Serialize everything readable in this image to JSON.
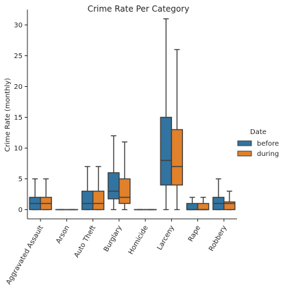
{
  "chart_data": {
    "type": "box",
    "title": "Crime Rate Per Category",
    "xlabel": "",
    "ylabel": "Crime Rate (monthly)",
    "ylim": [
      -1.5,
      32.5
    ],
    "yticks": [
      0,
      5,
      10,
      15,
      20,
      25,
      30
    ],
    "grid": false,
    "legend": {
      "title": "Date",
      "placement": "right"
    },
    "categories": [
      "Aggravated Assault",
      "Arson",
      "Auto Theft",
      "Burglary",
      "Homicide",
      "Larceny",
      "Rape",
      "Robbery"
    ],
    "series": [
      {
        "name": "before",
        "color": "#3274a1",
        "boxes": [
          {
            "min": 0,
            "q1": 0,
            "median": 1,
            "q3": 2,
            "max": 5
          },
          {
            "min": 0,
            "q1": 0,
            "median": 0,
            "q3": 0,
            "max": 0
          },
          {
            "min": 0,
            "q1": 0,
            "median": 1,
            "q3": 3,
            "max": 7
          },
          {
            "min": 0,
            "q1": 1.75,
            "median": 3,
            "q3": 6,
            "max": 12
          },
          {
            "min": 0,
            "q1": 0,
            "median": 0,
            "q3": 0,
            "max": 0
          },
          {
            "min": 0,
            "q1": 4,
            "median": 8,
            "q3": 15,
            "max": 31
          },
          {
            "min": 0,
            "q1": 0,
            "median": 0,
            "q3": 1,
            "max": 2
          },
          {
            "min": 0,
            "q1": 0,
            "median": 1,
            "q3": 2,
            "max": 5
          }
        ]
      },
      {
        "name": "during",
        "color": "#e1812c",
        "boxes": [
          {
            "min": 0,
            "q1": 0,
            "median": 1,
            "q3": 2,
            "max": 5
          },
          {
            "min": 0,
            "q1": 0,
            "median": 0,
            "q3": 0,
            "max": 0
          },
          {
            "min": 0,
            "q1": 0,
            "median": 1,
            "q3": 3,
            "max": 7
          },
          {
            "min": 0,
            "q1": 1,
            "median": 2,
            "q3": 5,
            "max": 11
          },
          {
            "min": 0,
            "q1": 0,
            "median": 0,
            "q3": 0,
            "max": 0
          },
          {
            "min": 0,
            "q1": 4,
            "median": 7,
            "q3": 13,
            "max": 26
          },
          {
            "min": 0,
            "q1": 0,
            "median": 0,
            "q3": 1,
            "max": 2
          },
          {
            "min": 0,
            "q1": 0,
            "median": 1,
            "q3": 1.25,
            "max": 3
          }
        ]
      }
    ]
  }
}
